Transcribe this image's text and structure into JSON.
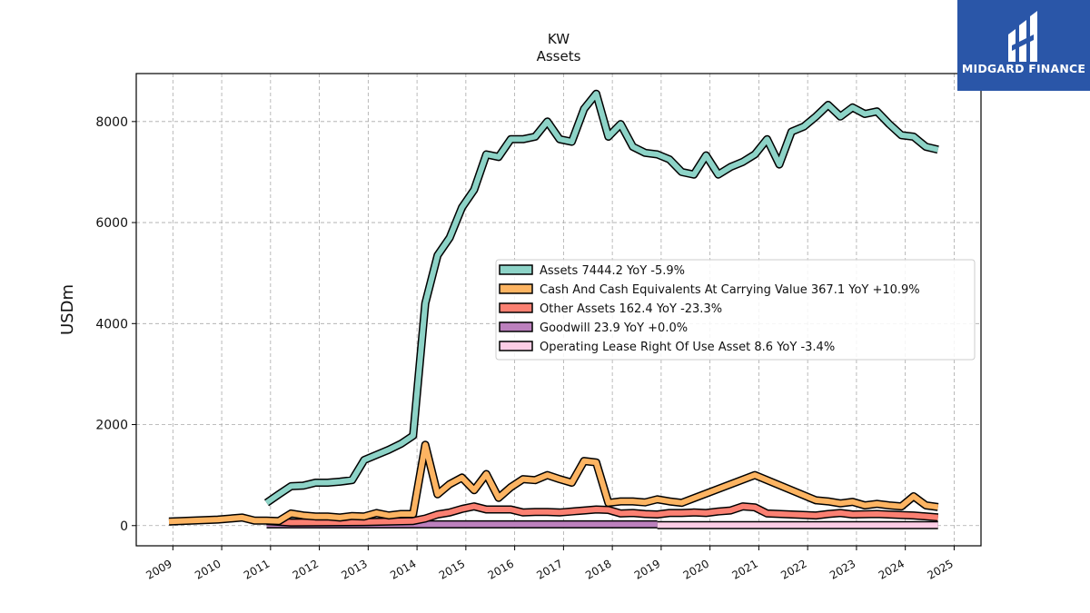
{
  "chart_data": {
    "type": "line",
    "title": "KW",
    "subtitle": "Assets",
    "ylabel": "USDm",
    "xlabel": "",
    "ylim": [
      -400,
      8950
    ],
    "xlim": [
      2008.25,
      2025.55
    ],
    "yticks": [
      0,
      2000,
      4000,
      6000,
      8000
    ],
    "xticks": [
      "2009",
      "2010",
      "2011",
      "2012",
      "2013",
      "2014",
      "2015",
      "2016",
      "2017",
      "2018",
      "2019",
      "2020",
      "2021",
      "2022",
      "2023",
      "2024",
      "2025"
    ],
    "grid": true,
    "legend_position": "center-right",
    "series": [
      {
        "name": "Assets",
        "legend_label": "Assets  7444.2 YoY -5.9%",
        "color": "#8dd3c7",
        "points": [
          [
            2010.92,
            450
          ],
          [
            2011.17,
            620
          ],
          [
            2011.42,
            780
          ],
          [
            2011.67,
            790
          ],
          [
            2011.92,
            850
          ],
          [
            2012.17,
            850
          ],
          [
            2012.42,
            870
          ],
          [
            2012.67,
            900
          ],
          [
            2012.92,
            1300
          ],
          [
            2013.17,
            1400
          ],
          [
            2013.42,
            1500
          ],
          [
            2013.67,
            1620
          ],
          [
            2013.92,
            1780
          ],
          [
            2014.17,
            4400
          ],
          [
            2014.42,
            5350
          ],
          [
            2014.67,
            5700
          ],
          [
            2014.92,
            6300
          ],
          [
            2015.17,
            6650
          ],
          [
            2015.42,
            7350
          ],
          [
            2015.67,
            7300
          ],
          [
            2015.92,
            7650
          ],
          [
            2016.17,
            7650
          ],
          [
            2016.42,
            7700
          ],
          [
            2016.67,
            8000
          ],
          [
            2016.92,
            7650
          ],
          [
            2017.17,
            7600
          ],
          [
            2017.42,
            8250
          ],
          [
            2017.67,
            8550
          ],
          [
            2017.92,
            7700
          ],
          [
            2018.17,
            7950
          ],
          [
            2018.42,
            7500
          ],
          [
            2018.67,
            7380
          ],
          [
            2018.92,
            7350
          ],
          [
            2019.17,
            7250
          ],
          [
            2019.42,
            7000
          ],
          [
            2019.67,
            6950
          ],
          [
            2019.92,
            7330
          ],
          [
            2020.17,
            6950
          ],
          [
            2020.42,
            7100
          ],
          [
            2020.67,
            7200
          ],
          [
            2020.92,
            7350
          ],
          [
            2021.17,
            7650
          ],
          [
            2021.42,
            7150
          ],
          [
            2021.67,
            7800
          ],
          [
            2021.92,
            7900
          ],
          [
            2022.17,
            8100
          ],
          [
            2022.42,
            8330
          ],
          [
            2022.67,
            8100
          ],
          [
            2022.92,
            8280
          ],
          [
            2023.17,
            8150
          ],
          [
            2023.42,
            8200
          ],
          [
            2023.67,
            7950
          ],
          [
            2023.92,
            7730
          ],
          [
            2024.17,
            7700
          ],
          [
            2024.42,
            7500
          ],
          [
            2024.67,
            7444
          ]
        ]
      },
      {
        "name": "Cash And Cash Equivalents At Carrying Value",
        "legend_label": "Cash And Cash Equivalents At Carrying Value  367.1 YoY +10.9%",
        "color": "#fdb462",
        "points": [
          [
            2008.92,
            80
          ],
          [
            2009.92,
            120
          ],
          [
            2010.42,
            160
          ],
          [
            2010.67,
            100
          ],
          [
            2010.92,
            100
          ],
          [
            2011.17,
            90
          ],
          [
            2011.42,
            240
          ],
          [
            2011.67,
            200
          ],
          [
            2011.92,
            180
          ],
          [
            2012.17,
            180
          ],
          [
            2012.42,
            160
          ],
          [
            2012.67,
            190
          ],
          [
            2012.92,
            180
          ],
          [
            2013.17,
            250
          ],
          [
            2013.42,
            200
          ],
          [
            2013.67,
            230
          ],
          [
            2013.92,
            230
          ],
          [
            2014.17,
            1600
          ],
          [
            2014.42,
            620
          ],
          [
            2014.67,
            820
          ],
          [
            2014.92,
            950
          ],
          [
            2015.17,
            700
          ],
          [
            2015.42,
            1020
          ],
          [
            2015.67,
            550
          ],
          [
            2015.92,
            760
          ],
          [
            2016.17,
            920
          ],
          [
            2016.42,
            900
          ],
          [
            2016.67,
            1000
          ],
          [
            2016.92,
            920
          ],
          [
            2017.17,
            850
          ],
          [
            2017.42,
            1280
          ],
          [
            2017.67,
            1250
          ],
          [
            2017.92,
            450
          ],
          [
            2018.17,
            480
          ],
          [
            2018.42,
            480
          ],
          [
            2018.67,
            460
          ],
          [
            2018.92,
            520
          ],
          [
            2019.17,
            480
          ],
          [
            2019.42,
            450
          ],
          [
            2020.92,
            1000
          ],
          [
            2021.92,
            600
          ],
          [
            2022.17,
            500
          ],
          [
            2022.42,
            480
          ],
          [
            2022.67,
            440
          ],
          [
            2022.92,
            470
          ],
          [
            2023.17,
            400
          ],
          [
            2023.42,
            430
          ],
          [
            2023.67,
            400
          ],
          [
            2023.92,
            380
          ],
          [
            2024.17,
            580
          ],
          [
            2024.42,
            400
          ],
          [
            2024.67,
            367
          ]
        ]
      },
      {
        "name": "Other Assets",
        "legend_label": "Other Assets  162.4 YoY -23.3%",
        "color": "#fb8072",
        "points": [
          [
            2010.92,
            90
          ],
          [
            2011.42,
            60
          ],
          [
            2012.92,
            70
          ],
          [
            2013.92,
            90
          ],
          [
            2014.17,
            140
          ],
          [
            2014.42,
            220
          ],
          [
            2014.67,
            260
          ],
          [
            2014.92,
            330
          ],
          [
            2015.17,
            380
          ],
          [
            2015.42,
            320
          ],
          [
            2015.67,
            320
          ],
          [
            2015.92,
            320
          ],
          [
            2016.17,
            260
          ],
          [
            2016.42,
            270
          ],
          [
            2016.67,
            270
          ],
          [
            2016.92,
            260
          ],
          [
            2017.17,
            280
          ],
          [
            2017.42,
            300
          ],
          [
            2017.67,
            320
          ],
          [
            2017.92,
            310
          ],
          [
            2018.17,
            240
          ],
          [
            2018.42,
            250
          ],
          [
            2018.67,
            230
          ],
          [
            2018.92,
            220
          ],
          [
            2019.17,
            250
          ],
          [
            2019.42,
            250
          ],
          [
            2019.67,
            260
          ],
          [
            2019.92,
            250
          ],
          [
            2020.17,
            280
          ],
          [
            2020.42,
            300
          ],
          [
            2020.67,
            380
          ],
          [
            2020.92,
            360
          ],
          [
            2021.17,
            240
          ],
          [
            2021.67,
            220
          ],
          [
            2022.17,
            200
          ],
          [
            2022.42,
            230
          ],
          [
            2022.67,
            250
          ],
          [
            2022.92,
            220
          ],
          [
            2023.42,
            230
          ],
          [
            2023.92,
            210
          ],
          [
            2024.17,
            200
          ],
          [
            2024.67,
            162
          ]
        ]
      },
      {
        "name": "Goodwill",
        "legend_label": "Goodwill  23.9 YoY +0.0%",
        "color": "#bc80bd",
        "points": [
          [
            2010.92,
            23.9
          ],
          [
            2018.92,
            23.9
          ]
        ]
      },
      {
        "name": "Operating Lease Right Of Use Asset",
        "legend_label": "Operating Lease Right Of Use Asset  8.6 YoY -3.4%",
        "color": "#fccde5",
        "points": [
          [
            2018.92,
            8.6
          ],
          [
            2024.67,
            8.6
          ]
        ]
      }
    ]
  },
  "logo": {
    "text": "MIDGARD FINANCE",
    "background": "#2a56a8"
  }
}
